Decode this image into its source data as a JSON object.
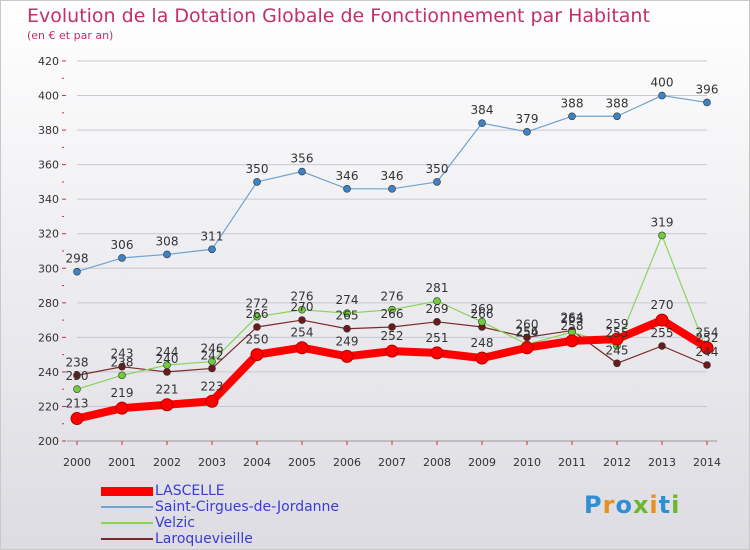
{
  "title": "Evolution de la Dotation Globale de Fonctionnement par Habitant",
  "subtitle": "(en € et par an)",
  "logo": {
    "text": "Proxiti",
    "letters": [
      "P",
      "r",
      "o",
      "x",
      "i",
      "t",
      "i"
    ],
    "colors": [
      "#2e8fd6",
      "#e8901e",
      "#2e8fd6",
      "#6bb82e",
      "#e8901e",
      "#2e8fd6",
      "#6bb82e"
    ]
  },
  "chart_data": {
    "type": "line",
    "title": "Evolution de la Dotation Globale de Fonctionnement par Habitant",
    "subtitle": "(en € et par an)",
    "x": [
      "2000",
      "2001",
      "2002",
      "2003",
      "2004",
      "2005",
      "2006",
      "2007",
      "2008",
      "2009",
      "2010",
      "2011",
      "2012",
      "2013",
      "2014"
    ],
    "y_ticks": [
      "200",
      "220",
      "240",
      "260",
      "280",
      "300",
      "320",
      "340",
      "360",
      "380",
      "400",
      "420"
    ],
    "ylim": [
      200,
      420
    ],
    "grid": "horizontal",
    "series": [
      {
        "name": "LASCELLE",
        "color": "#ff0000",
        "marker_color": "#ff0000",
        "thick": true,
        "values": [
          213,
          219,
          221,
          223,
          250,
          254,
          249,
          252,
          251,
          248,
          254,
          258,
          259,
          270,
          254
        ],
        "labels": [
          "213",
          "219",
          "221",
          "223",
          "250",
          "254",
          "249",
          "252",
          "251",
          "248",
          "254",
          "258",
          "259",
          "270",
          "254"
        ]
      },
      {
        "name": "Saint-Cirgues-de-Jordanne",
        "color": "#6fa3d0",
        "marker_color": "#3d82c4",
        "thick": false,
        "values": [
          298,
          306,
          308,
          311,
          350,
          356,
          346,
          346,
          350,
          384,
          379,
          388,
          388,
          400,
          396
        ],
        "labels": [
          "298",
          "306",
          "308",
          "311",
          "350",
          "356",
          "346",
          "346",
          "350",
          "384",
          "379",
          "388",
          "388",
          "400",
          "396"
        ]
      },
      {
        "name": "Velzic",
        "color": "#88d45a",
        "marker_color": "#6fcc3a",
        "thick": false,
        "values": [
          230,
          238,
          244,
          246,
          272,
          276,
          274,
          276,
          281,
          269,
          256,
          263,
          255,
          319,
          252
        ],
        "labels": [
          "230",
          "238",
          "244",
          "246",
          "272",
          "276",
          "274",
          "276",
          "281",
          "269",
          "256",
          "263",
          "255",
          "319",
          "252"
        ]
      },
      {
        "name": "Laroquevieille",
        "color": "#7a2a2a",
        "marker_color": "#6a1a1a",
        "thick": false,
        "values": [
          238,
          243,
          240,
          242,
          266,
          270,
          265,
          266,
          269,
          266,
          260,
          264,
          245,
          255,
          244
        ],
        "labels": [
          "238",
          "243",
          "240",
          "242",
          "266",
          "270",
          "265",
          "266",
          "269",
          "266",
          "260",
          "264",
          "245",
          "255",
          "244"
        ]
      }
    ]
  }
}
